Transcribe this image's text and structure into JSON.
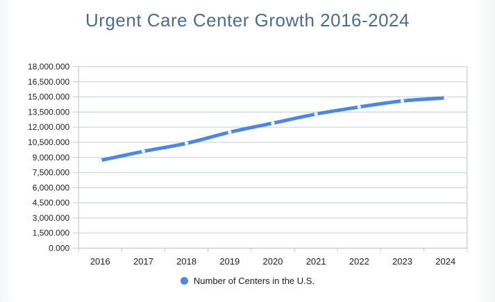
{
  "title": "Urgent Care Center Growth 2016-2024",
  "colors": {
    "line": "#4a86ec",
    "marker_fill": "#f3f7fd",
    "grid": "#ccd2da",
    "axis_border": "#c3cad2",
    "title_text": "#4b6b92",
    "tick_text": "#1c1c1c",
    "legend_text": "#1c1c1c"
  },
  "legend": {
    "label": "Number of Centers in the U.S."
  },
  "chart_data": {
    "type": "line",
    "title": "Urgent Care Center Growth 2016-2024",
    "categories": [
      "2016",
      "2017",
      "2018",
      "2019",
      "2020",
      "2021",
      "2022",
      "2023",
      "2024"
    ],
    "series": [
      {
        "name": "Number of Centers in the U.S.",
        "values": [
          8700,
          9600,
          10400,
          11500,
          12400,
          13300,
          14000,
          14600,
          14900
        ]
      }
    ],
    "xlabel": "",
    "ylabel": "",
    "ylim": [
      0,
      18000
    ],
    "ytick_step": 1500,
    "ytick_labels": [
      "0.000",
      "1,500.000",
      "3,000.000",
      "4,500.000",
      "6,000.000",
      "7,500.000",
      "9,000.000",
      "10,500.000",
      "12,000.000",
      "13,500.000",
      "15,000.000",
      "16,500.000",
      "18,000.000"
    ],
    "grid": true,
    "legend_position": "bottom",
    "line_smooth": true
  }
}
